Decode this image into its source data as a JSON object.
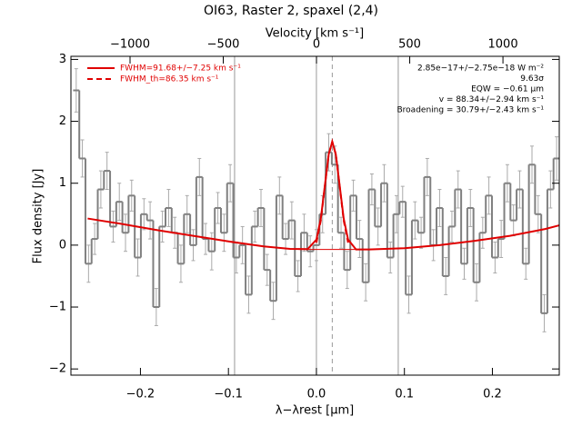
{
  "chart_data": {
    "type": "step",
    "title": "OI63, Raster 2, spaxel (2,4)",
    "xlabel": "λ−λrest [μm]",
    "ylabel": "Flux density [Jy]",
    "x2label": "Velocity [km s⁻¹]",
    "xlim": [
      -0.279,
      0.276
    ],
    "x2lim": [
      -1317,
      1302
    ],
    "ylim": [
      -2.1,
      3.05
    ],
    "xticks": [
      {
        "value": -0.2,
        "label": "−0.2"
      },
      {
        "value": -0.1,
        "label": "−0.1"
      },
      {
        "value": 0,
        "label": "0.0"
      },
      {
        "value": 0.1,
        "label": "0.1"
      },
      {
        "value": 0.2,
        "label": "0.2"
      }
    ],
    "x2ticks": [
      {
        "value": -1000,
        "label": "−1000"
      },
      {
        "value": -500,
        "label": "−500"
      },
      0,
      500,
      1000
    ],
    "yticks": [
      {
        "value": -2,
        "label": "−2"
      },
      {
        "value": -1,
        "label": "−1"
      },
      0,
      1,
      2,
      3
    ],
    "reference_lines": [
      {
        "x": -0.093,
        "style": "solid"
      },
      {
        "x": 0,
        "style": "solid"
      },
      {
        "x": 0.093,
        "style": "solid"
      },
      {
        "x": 0.018,
        "style": "dashed"
      }
    ],
    "spectrum": {
      "color": "#808080",
      "bin_width": 0.007,
      "x": [
        -0.273,
        -0.266,
        -0.259,
        -0.252,
        -0.245,
        -0.238,
        -0.231,
        -0.224,
        -0.217,
        -0.21,
        -0.203,
        -0.196,
        -0.189,
        -0.182,
        -0.175,
        -0.168,
        -0.161,
        -0.154,
        -0.147,
        -0.14,
        -0.133,
        -0.126,
        -0.119,
        -0.112,
        -0.105,
        -0.098,
        -0.091,
        -0.084,
        -0.077,
        -0.07,
        -0.063,
        -0.056,
        -0.049,
        -0.042,
        -0.035,
        -0.028,
        -0.021,
        -0.014,
        -0.007,
        0.0,
        0.007,
        0.014,
        0.021,
        0.028,
        0.035,
        0.042,
        0.049,
        0.056,
        0.063,
        0.07,
        0.077,
        0.084,
        0.091,
        0.098,
        0.105,
        0.112,
        0.119,
        0.126,
        0.133,
        0.14,
        0.147,
        0.154,
        0.161,
        0.168,
        0.175,
        0.182,
        0.189,
        0.196,
        0.203,
        0.21,
        0.217,
        0.224,
        0.231,
        0.238,
        0.245,
        0.252,
        0.259,
        0.266,
        0.273
      ],
      "values": [
        2.5,
        1.4,
        -0.3,
        0.1,
        0.9,
        1.2,
        0.3,
        0.7,
        0.2,
        0.8,
        -0.2,
        0.5,
        0.4,
        -1.0,
        0.3,
        0.6,
        0.2,
        -0.3,
        0.5,
        0.0,
        1.1,
        0.1,
        -0.1,
        0.6,
        0.2,
        1.0,
        -0.2,
        0.0,
        -0.8,
        0.3,
        0.6,
        -0.4,
        -0.9,
        0.8,
        0.1,
        0.4,
        -0.5,
        0.2,
        -0.1,
        0.0,
        0.5,
        1.5,
        1.3,
        0.2,
        -0.4,
        0.8,
        0.1,
        -0.6,
        0.9,
        0.3,
        1.0,
        -0.2,
        0.5,
        0.7,
        -0.8,
        0.4,
        0.2,
        1.1,
        0.0,
        0.6,
        -0.5,
        0.3,
        0.9,
        -0.3,
        0.6,
        -0.6,
        0.2,
        0.8,
        -0.2,
        0.1,
        1.0,
        0.4,
        0.9,
        -0.3,
        1.3,
        0.5,
        -1.1,
        0.9,
        1.4
      ],
      "errors": [
        0.35,
        0.3,
        0.3,
        0.25,
        0.3,
        0.3,
        0.25,
        0.3,
        0.3,
        0.25,
        0.3,
        0.25,
        0.3,
        0.3,
        0.25,
        0.3,
        0.25,
        0.3,
        0.3,
        0.25,
        0.3,
        0.25,
        0.3,
        0.25,
        0.3,
        0.3,
        0.25,
        0.3,
        0.3,
        0.25,
        0.3,
        0.25,
        0.3,
        0.3,
        0.25,
        0.3,
        0.25,
        0.3,
        0.25,
        0.25,
        0.3,
        0.3,
        0.3,
        0.25,
        0.3,
        0.25,
        0.3,
        0.3,
        0.25,
        0.3,
        0.3,
        0.25,
        0.3,
        0.25,
        0.3,
        0.3,
        0.25,
        0.3,
        0.25,
        0.3,
        0.3,
        0.25,
        0.3,
        0.25,
        0.3,
        0.3,
        0.25,
        0.3,
        0.25,
        0.3,
        0.3,
        0.25,
        0.3,
        0.25,
        0.3,
        0.3,
        0.3,
        0.3,
        0.35
      ]
    },
    "series": [
      {
        "name": "FWHM=91.68+/−7.25 km s⁻¹",
        "color": "#e00000",
        "style": "solid",
        "x": [
          -0.26,
          -0.22,
          -0.18,
          -0.14,
          -0.1,
          -0.06,
          -0.03,
          -0.01,
          0.0,
          0.005,
          0.01,
          0.014,
          0.018,
          0.022,
          0.026,
          0.031,
          0.036,
          0.045,
          0.06,
          0.1,
          0.14,
          0.18,
          0.22,
          0.26,
          0.276
        ],
        "values": [
          0.43,
          0.34,
          0.24,
          0.15,
          0.06,
          -0.02,
          -0.06,
          -0.065,
          0.09,
          0.43,
          1.01,
          1.47,
          1.67,
          1.47,
          1.01,
          0.43,
          0.09,
          -0.07,
          -0.07,
          -0.05,
          0.0,
          0.07,
          0.15,
          0.26,
          0.32
        ]
      },
      {
        "name": "FWHM_th=86.35 km s⁻¹",
        "color": "#e00000",
        "style": "dashed",
        "x": [
          0.0,
          0.005,
          0.01,
          0.014,
          0.018,
          0.022,
          0.026,
          0.031,
          0.036
        ],
        "values": [
          0.04,
          0.4,
          1.0,
          1.47,
          1.67,
          1.47,
          1.0,
          0.4,
          0.04
        ]
      }
    ],
    "baseline": {
      "color": "#e00000",
      "x": [
        -0.02,
        0.06
      ],
      "values": [
        -0.07,
        -0.07
      ]
    },
    "annotations": [
      "2.85e−17+/−2.75e−18 W m⁻²",
      "9.63σ",
      "EQW = −0.61 μm",
      "v = 88.34+/−2.94 km s⁻¹",
      "Broadening = 30.79+/−2.43 km s⁻¹"
    ]
  }
}
